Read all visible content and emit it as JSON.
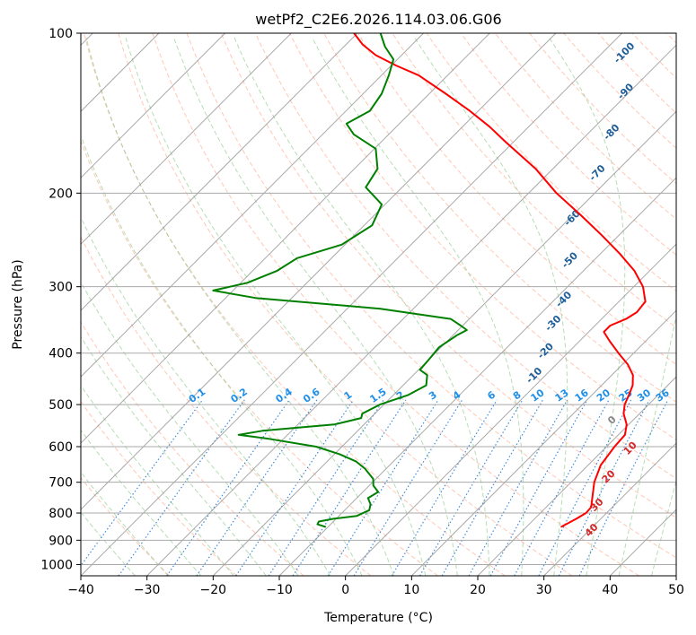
{
  "chart_data": {
    "type": "line",
    "title": "wetPf2_C2E6.2026.114.03.06.G06",
    "xlabel": "Temperature (°C)",
    "ylabel": "Pressure (hPa)",
    "xlim": [
      -40,
      50
    ],
    "ylim": [
      1050,
      100
    ],
    "y_scale": "log",
    "grid": true,
    "x_ticks": [
      -40,
      -30,
      -20,
      -10,
      0,
      10,
      20,
      30,
      40,
      50
    ],
    "y_ticks": [
      100,
      200,
      300,
      400,
      500,
      600,
      700,
      800,
      900,
      1000
    ],
    "skew": "skew-T log-P",
    "dry_adiabat_labels": [
      "0",
      "10",
      "20",
      "30",
      "40"
    ],
    "moist_adiabat_labels": [
      "-100",
      "-90",
      "-80",
      "-70",
      "-60",
      "-50",
      "-40",
      "-30",
      "-20",
      "-10"
    ],
    "mixing_ratio_labels": [
      "0.1",
      "0.2",
      "0.4",
      "0.6",
      "1",
      "1.5",
      "2",
      "3",
      "4",
      "6",
      "8",
      "10",
      "13",
      "16",
      "20",
      "25",
      "30",
      "36"
    ],
    "series": [
      {
        "color": "#ff0000",
        "points": [
          {
            "p": 850,
            "t": 25.2
          },
          {
            "p": 820,
            "t": 26.3
          },
          {
            "p": 800,
            "t": 26.9
          },
          {
            "p": 780,
            "t": 26.8
          },
          {
            "p": 750,
            "t": 25.6
          },
          {
            "p": 700,
            "t": 23.5
          },
          {
            "p": 650,
            "t": 21.9
          },
          {
            "p": 600,
            "t": 21.2
          },
          {
            "p": 570,
            "t": 21.0
          },
          {
            "p": 545,
            "t": 19.7
          },
          {
            "p": 520,
            "t": 17.6
          },
          {
            "p": 500,
            "t": 16.4
          },
          {
            "p": 480,
            "t": 15.6
          },
          {
            "p": 460,
            "t": 14.7
          },
          {
            "p": 440,
            "t": 13.2
          },
          {
            "p": 420,
            "t": 10.8
          },
          {
            "p": 400,
            "t": 7.7
          },
          {
            "p": 380,
            "t": 4.6
          },
          {
            "p": 365,
            "t": 2.3
          },
          {
            "p": 355,
            "t": 2.3
          },
          {
            "p": 345,
            "t": 3.7
          },
          {
            "p": 335,
            "t": 4.3
          },
          {
            "p": 320,
            "t": 4.0
          },
          {
            "p": 300,
            "t": 1.4
          },
          {
            "p": 280,
            "t": -2.3
          },
          {
            "p": 260,
            "t": -7.1
          },
          {
            "p": 240,
            "t": -12.6
          },
          {
            "p": 220,
            "t": -18.8
          },
          {
            "p": 200,
            "t": -25.8
          },
          {
            "p": 180,
            "t": -32.6
          },
          {
            "p": 160,
            "t": -41.3
          },
          {
            "p": 150,
            "t": -45.9
          },
          {
            "p": 140,
            "t": -51.3
          },
          {
            "p": 130,
            "t": -57.5
          },
          {
            "p": 120,
            "t": -64.4
          },
          {
            "p": 115,
            "t": -69.3
          },
          {
            "p": 110,
            "t": -73.9
          },
          {
            "p": 105,
            "t": -77.5
          },
          {
            "p": 100,
            "t": -80.5
          }
        ]
      },
      {
        "color": "#008000",
        "points": [
          {
            "p": 850,
            "t": -10.3
          },
          {
            "p": 840,
            "t": -12.0
          },
          {
            "p": 830,
            "t": -12.2
          },
          {
            "p": 820,
            "t": -10.4
          },
          {
            "p": 810,
            "t": -7.3
          },
          {
            "p": 790,
            "t": -6.3
          },
          {
            "p": 770,
            "t": -7.0
          },
          {
            "p": 750,
            "t": -8.3
          },
          {
            "p": 730,
            "t": -7.7
          },
          {
            "p": 710,
            "t": -9.4
          },
          {
            "p": 690,
            "t": -10.4
          },
          {
            "p": 660,
            "t": -13.2
          },
          {
            "p": 640,
            "t": -15.6
          },
          {
            "p": 620,
            "t": -19.2
          },
          {
            "p": 600,
            "t": -23.9
          },
          {
            "p": 580,
            "t": -32.2
          },
          {
            "p": 570,
            "t": -37.4
          },
          {
            "p": 560,
            "t": -34.4
          },
          {
            "p": 545,
            "t": -24.5
          },
          {
            "p": 530,
            "t": -21.4
          },
          {
            "p": 520,
            "t": -21.9
          },
          {
            "p": 500,
            "t": -20.6
          },
          {
            "p": 480,
            "t": -17.8
          },
          {
            "p": 460,
            "t": -16.5
          },
          {
            "p": 440,
            "t": -17.9
          },
          {
            "p": 430,
            "t": -19.8
          },
          {
            "p": 410,
            "t": -20.0
          },
          {
            "p": 390,
            "t": -20.3
          },
          {
            "p": 370,
            "t": -19.4
          },
          {
            "p": 362,
            "t": -18.7
          },
          {
            "p": 355,
            "t": -20.3
          },
          {
            "p": 345,
            "t": -22.8
          },
          {
            "p": 330,
            "t": -35.0
          },
          {
            "p": 315,
            "t": -55.5
          },
          {
            "p": 305,
            "t": -63.0
          },
          {
            "p": 295,
            "t": -59.0
          },
          {
            "p": 280,
            "t": -56.3
          },
          {
            "p": 265,
            "t": -55.2
          },
          {
            "p": 250,
            "t": -50.5
          },
          {
            "p": 230,
            "t": -48.8
          },
          {
            "p": 210,
            "t": -50.5
          },
          {
            "p": 195,
            "t": -55.5
          },
          {
            "p": 180,
            "t": -56.5
          },
          {
            "p": 165,
            "t": -59.8
          },
          {
            "p": 155,
            "t": -65.3
          },
          {
            "p": 148,
            "t": -68.0
          },
          {
            "p": 140,
            "t": -66.4
          },
          {
            "p": 130,
            "t": -67.2
          },
          {
            "p": 120,
            "t": -68.9
          },
          {
            "p": 112,
            "t": -70.6
          },
          {
            "p": 106,
            "t": -73.8
          },
          {
            "p": 100,
            "t": -76.5
          }
        ]
      }
    ]
  }
}
